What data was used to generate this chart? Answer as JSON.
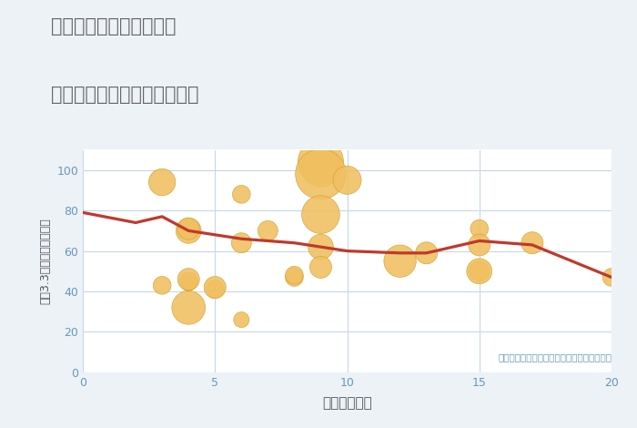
{
  "title_line1": "三重県四日市市高浜町の",
  "title_line2": "駅距離別中古マンション価格",
  "xlabel": "駅距離（分）",
  "ylabel": "坪（3.3㎡）単価（万円）",
  "annotation": "円の大きさは、取引のあった物件面積を示す",
  "xlim": [
    0,
    20
  ],
  "ylim": [
    0,
    110
  ],
  "yticks": [
    0,
    20,
    40,
    60,
    80,
    100
  ],
  "xticks": [
    0,
    5,
    10,
    15,
    20
  ],
  "background_color": "#edf2f7",
  "plot_bg_color": "#ffffff",
  "bubble_color": "#f0c060",
  "bubble_edge_color": "#d4a030",
  "line_color": "#c0392b",
  "grid_color": "#c5d8e8",
  "title_color": "#666666",
  "tick_color": "#6699bb",
  "label_color": "#555555",
  "annotation_color": "#6699bb",
  "scatter_x": [
    3,
    3,
    4,
    4,
    4,
    4,
    4,
    4,
    5,
    5,
    6,
    6,
    6,
    7,
    8,
    8,
    9,
    9,
    9,
    9,
    9,
    9,
    10,
    12,
    13,
    15,
    15,
    15,
    15,
    17,
    20
  ],
  "scatter_y": [
    43,
    94,
    44,
    45,
    46,
    70,
    71,
    32,
    41,
    42,
    88,
    64,
    26,
    70,
    47,
    48,
    104,
    101,
    98,
    78,
    62,
    52,
    95,
    55,
    59,
    71,
    63,
    50,
    50,
    64,
    47
  ],
  "scatter_size": [
    200,
    450,
    150,
    200,
    300,
    400,
    300,
    700,
    200,
    300,
    200,
    250,
    150,
    250,
    200,
    200,
    1300,
    900,
    1600,
    900,
    400,
    300,
    500,
    650,
    300,
    200,
    300,
    250,
    400,
    300,
    200
  ],
  "line_x": [
    0,
    2,
    3,
    4,
    5,
    6,
    7,
    8,
    9,
    10,
    12,
    13,
    15,
    16,
    17,
    20
  ],
  "line_y": [
    79,
    74,
    77,
    70,
    68,
    66,
    65,
    64,
    62,
    60,
    59,
    59,
    65,
    64,
    63,
    47
  ]
}
